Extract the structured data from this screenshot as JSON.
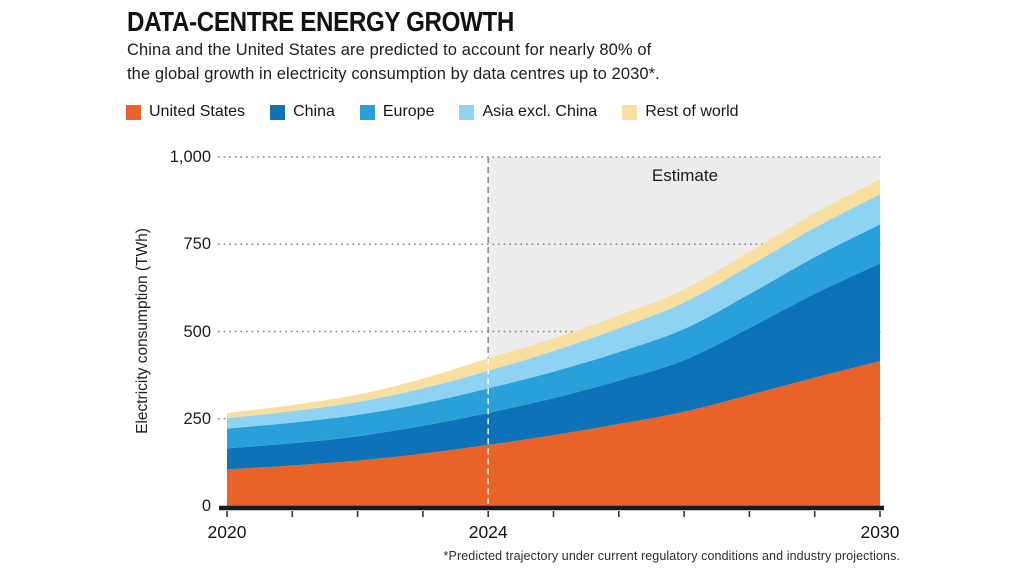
{
  "header": {
    "title": "DATA-CENTRE ENERGY GROWTH",
    "subtitle_lines": [
      "China and the United States are predicted to account for nearly 80% of",
      "the global growth in electricity consumption by data centres up to 2030*."
    ]
  },
  "footnote": "*Predicted trajectory under current regulatory conditions and industry projections.",
  "chart_data": {
    "type": "area",
    "stacked": true,
    "title": "DATA-CENTRE ENERGY GROWTH",
    "ylabel": "Electricity consumption (TWh)",
    "xlabel": "",
    "ylim": [
      0,
      1000
    ],
    "x": [
      2020,
      2021,
      2022,
      2023,
      2024,
      2025,
      2026,
      2027,
      2028,
      2029,
      2030
    ],
    "series": [
      {
        "name": "United States",
        "color": "#E96329",
        "values": [
          105,
          116,
          130,
          150,
          175,
          203,
          235,
          270,
          318,
          368,
          415
        ]
      },
      {
        "name": "China",
        "color": "#0E72B8",
        "values": [
          60,
          64,
          70,
          80,
          92,
          106,
          124,
          148,
          192,
          240,
          280
        ]
      },
      {
        "name": "Europe",
        "color": "#2AA0DB",
        "values": [
          57,
          59,
          61,
          64,
          70,
          76,
          82,
          89,
          97,
          105,
          112
        ]
      },
      {
        "name": "Asia excl. China",
        "color": "#8ED3F2",
        "values": [
          30,
          33,
          37,
          43,
          50,
          59,
          68,
          76,
          81,
          84,
          86
        ]
      },
      {
        "name": "Rest of world",
        "color": "#F8DFA0",
        "values": [
          15,
          17,
          21,
          28,
          36,
          36,
          37,
          38,
          40,
          42,
          43
        ]
      }
    ],
    "yticks": [
      0,
      250,
      500,
      750,
      1000
    ],
    "ytick_labels": [
      "0",
      "250",
      "500",
      "750",
      "1,000"
    ],
    "xtick_years": [
      2020,
      2024,
      2030
    ],
    "xtick_labels": [
      "2020",
      "2024",
      "2030"
    ],
    "grid": "dotted horizontal gridlines",
    "legend_position": "top",
    "estimate": {
      "label": "Estimate",
      "start_year": 2024,
      "end_year": 2030,
      "region_color": "#ECECEC",
      "divider_style": "dashed vertical line at 2024"
    },
    "colors": {
      "axis": "#1A1A1A",
      "gridline": "#8C8C8C",
      "dashed_divider": "#8F8F8F",
      "background": "#FFFFFF"
    }
  }
}
